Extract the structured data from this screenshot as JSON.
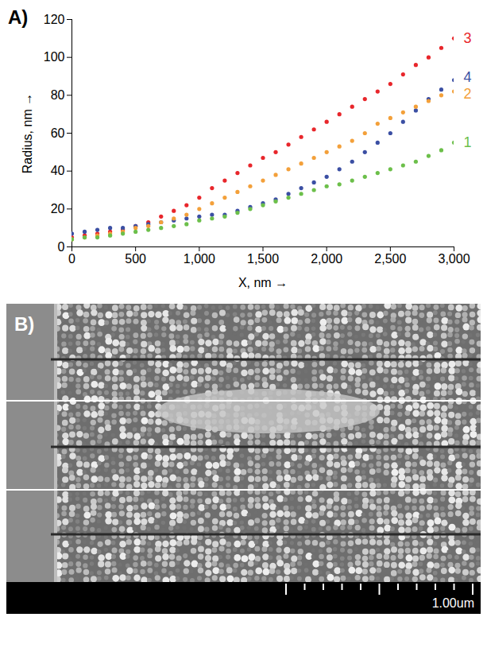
{
  "chart_data": {
    "type": "scatter",
    "panel": "A)",
    "x_label": "X, nm",
    "y_label": "Radius, nm",
    "xlim": [
      0,
      3000
    ],
    "xticks": [
      0,
      500,
      1000,
      1500,
      2000,
      2500,
      3000
    ],
    "ylim": [
      0,
      120
    ],
    "yticks": [
      0,
      20,
      40,
      60,
      80,
      100,
      120
    ],
    "marker": "circle",
    "x": [
      0,
      100,
      200,
      300,
      400,
      500,
      600,
      700,
      800,
      900,
      1000,
      1100,
      1200,
      1300,
      1400,
      1500,
      1600,
      1700,
      1800,
      1900,
      2000,
      2100,
      2200,
      2300,
      2400,
      2500,
      2600,
      2700,
      2800,
      2900,
      3000
    ],
    "series": [
      {
        "name": "3",
        "color": "#e8262b",
        "values": [
          5,
          6,
          7,
          8,
          9,
          11,
          13,
          16,
          19,
          22,
          26,
          31,
          35,
          39,
          43,
          47,
          50,
          54,
          58,
          62,
          66,
          70,
          74,
          78,
          82,
          86,
          91,
          96,
          100,
          105,
          110
        ]
      },
      {
        "name": "4",
        "color": "#3b4fa3",
        "values": [
          7,
          8,
          9,
          10,
          10,
          11,
          12,
          13,
          14,
          15,
          16,
          17,
          17,
          19,
          21,
          23,
          25,
          28,
          31,
          34,
          37,
          41,
          45,
          50,
          55,
          60,
          66,
          72,
          78,
          83,
          88
        ]
      },
      {
        "name": "2",
        "color": "#f3a03a",
        "values": [
          4,
          5,
          6,
          7,
          8,
          10,
          11,
          13,
          15,
          17,
          20,
          23,
          26,
          29,
          32,
          35,
          38,
          41,
          44,
          47,
          50,
          53,
          56,
          60,
          65,
          68,
          71,
          74,
          77,
          80,
          82
        ]
      },
      {
        "name": "1",
        "color": "#6cbf4a",
        "values": [
          4,
          5,
          5,
          6,
          7,
          8,
          9,
          10,
          11,
          12,
          14,
          15,
          16,
          18,
          20,
          22,
          24,
          26,
          28,
          30,
          32,
          33,
          35,
          37,
          39,
          41,
          43,
          45,
          48,
          51,
          55
        ]
      }
    ]
  },
  "image": {
    "panel": "B)",
    "scale_bar": "1.00um"
  }
}
